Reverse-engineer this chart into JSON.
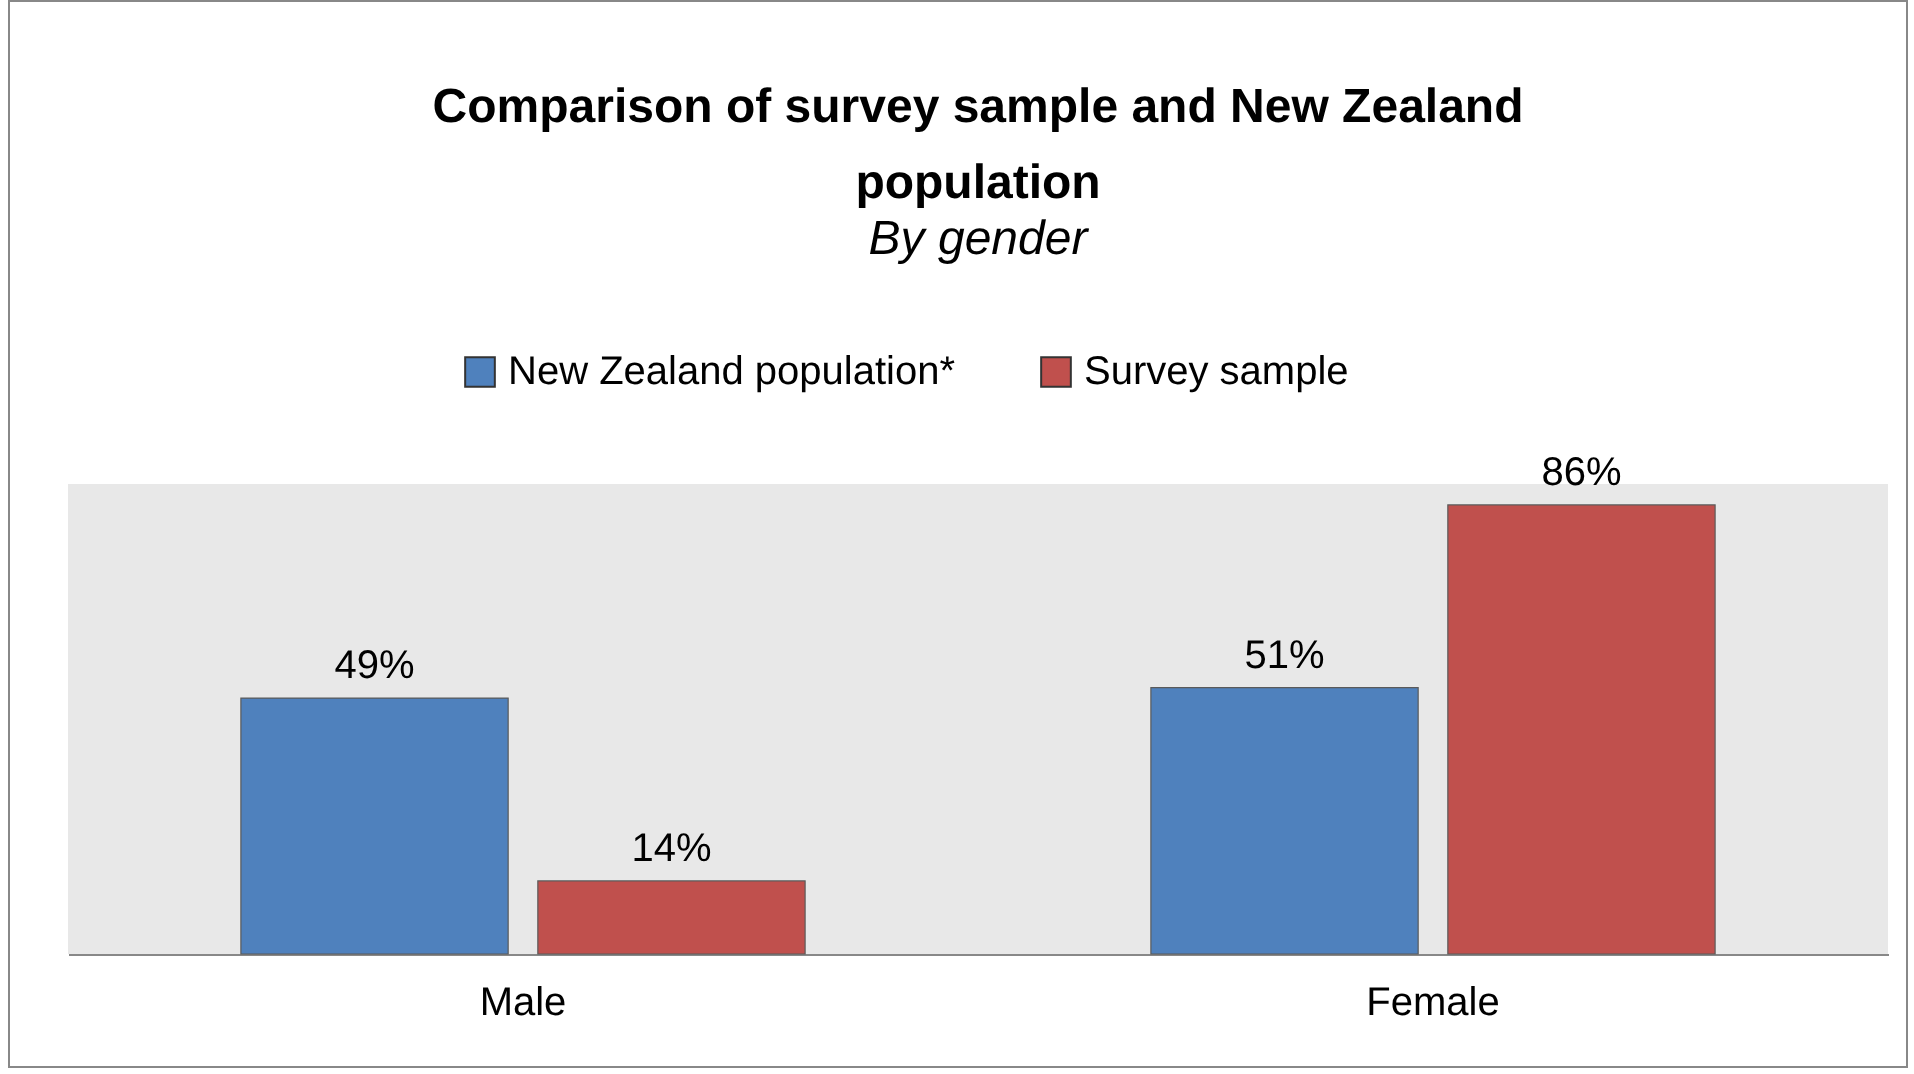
{
  "chart_data": {
    "type": "bar",
    "title": "Comparison of survey sample and New Zealand population",
    "subtitle": "By gender",
    "categories": [
      "Male",
      "Female"
    ],
    "series": [
      {
        "name": "New Zealand population*",
        "color": "#4f81bd",
        "values": [
          49,
          51
        ],
        "value_labels": [
          "49%",
          "51%"
        ]
      },
      {
        "name": "Survey sample",
        "color": "#c0504d",
        "values": [
          14,
          86
        ],
        "value_labels": [
          "14%",
          "86%"
        ]
      }
    ],
    "tick_labels": "x",
    "legend": "top",
    "grid": false
  }
}
